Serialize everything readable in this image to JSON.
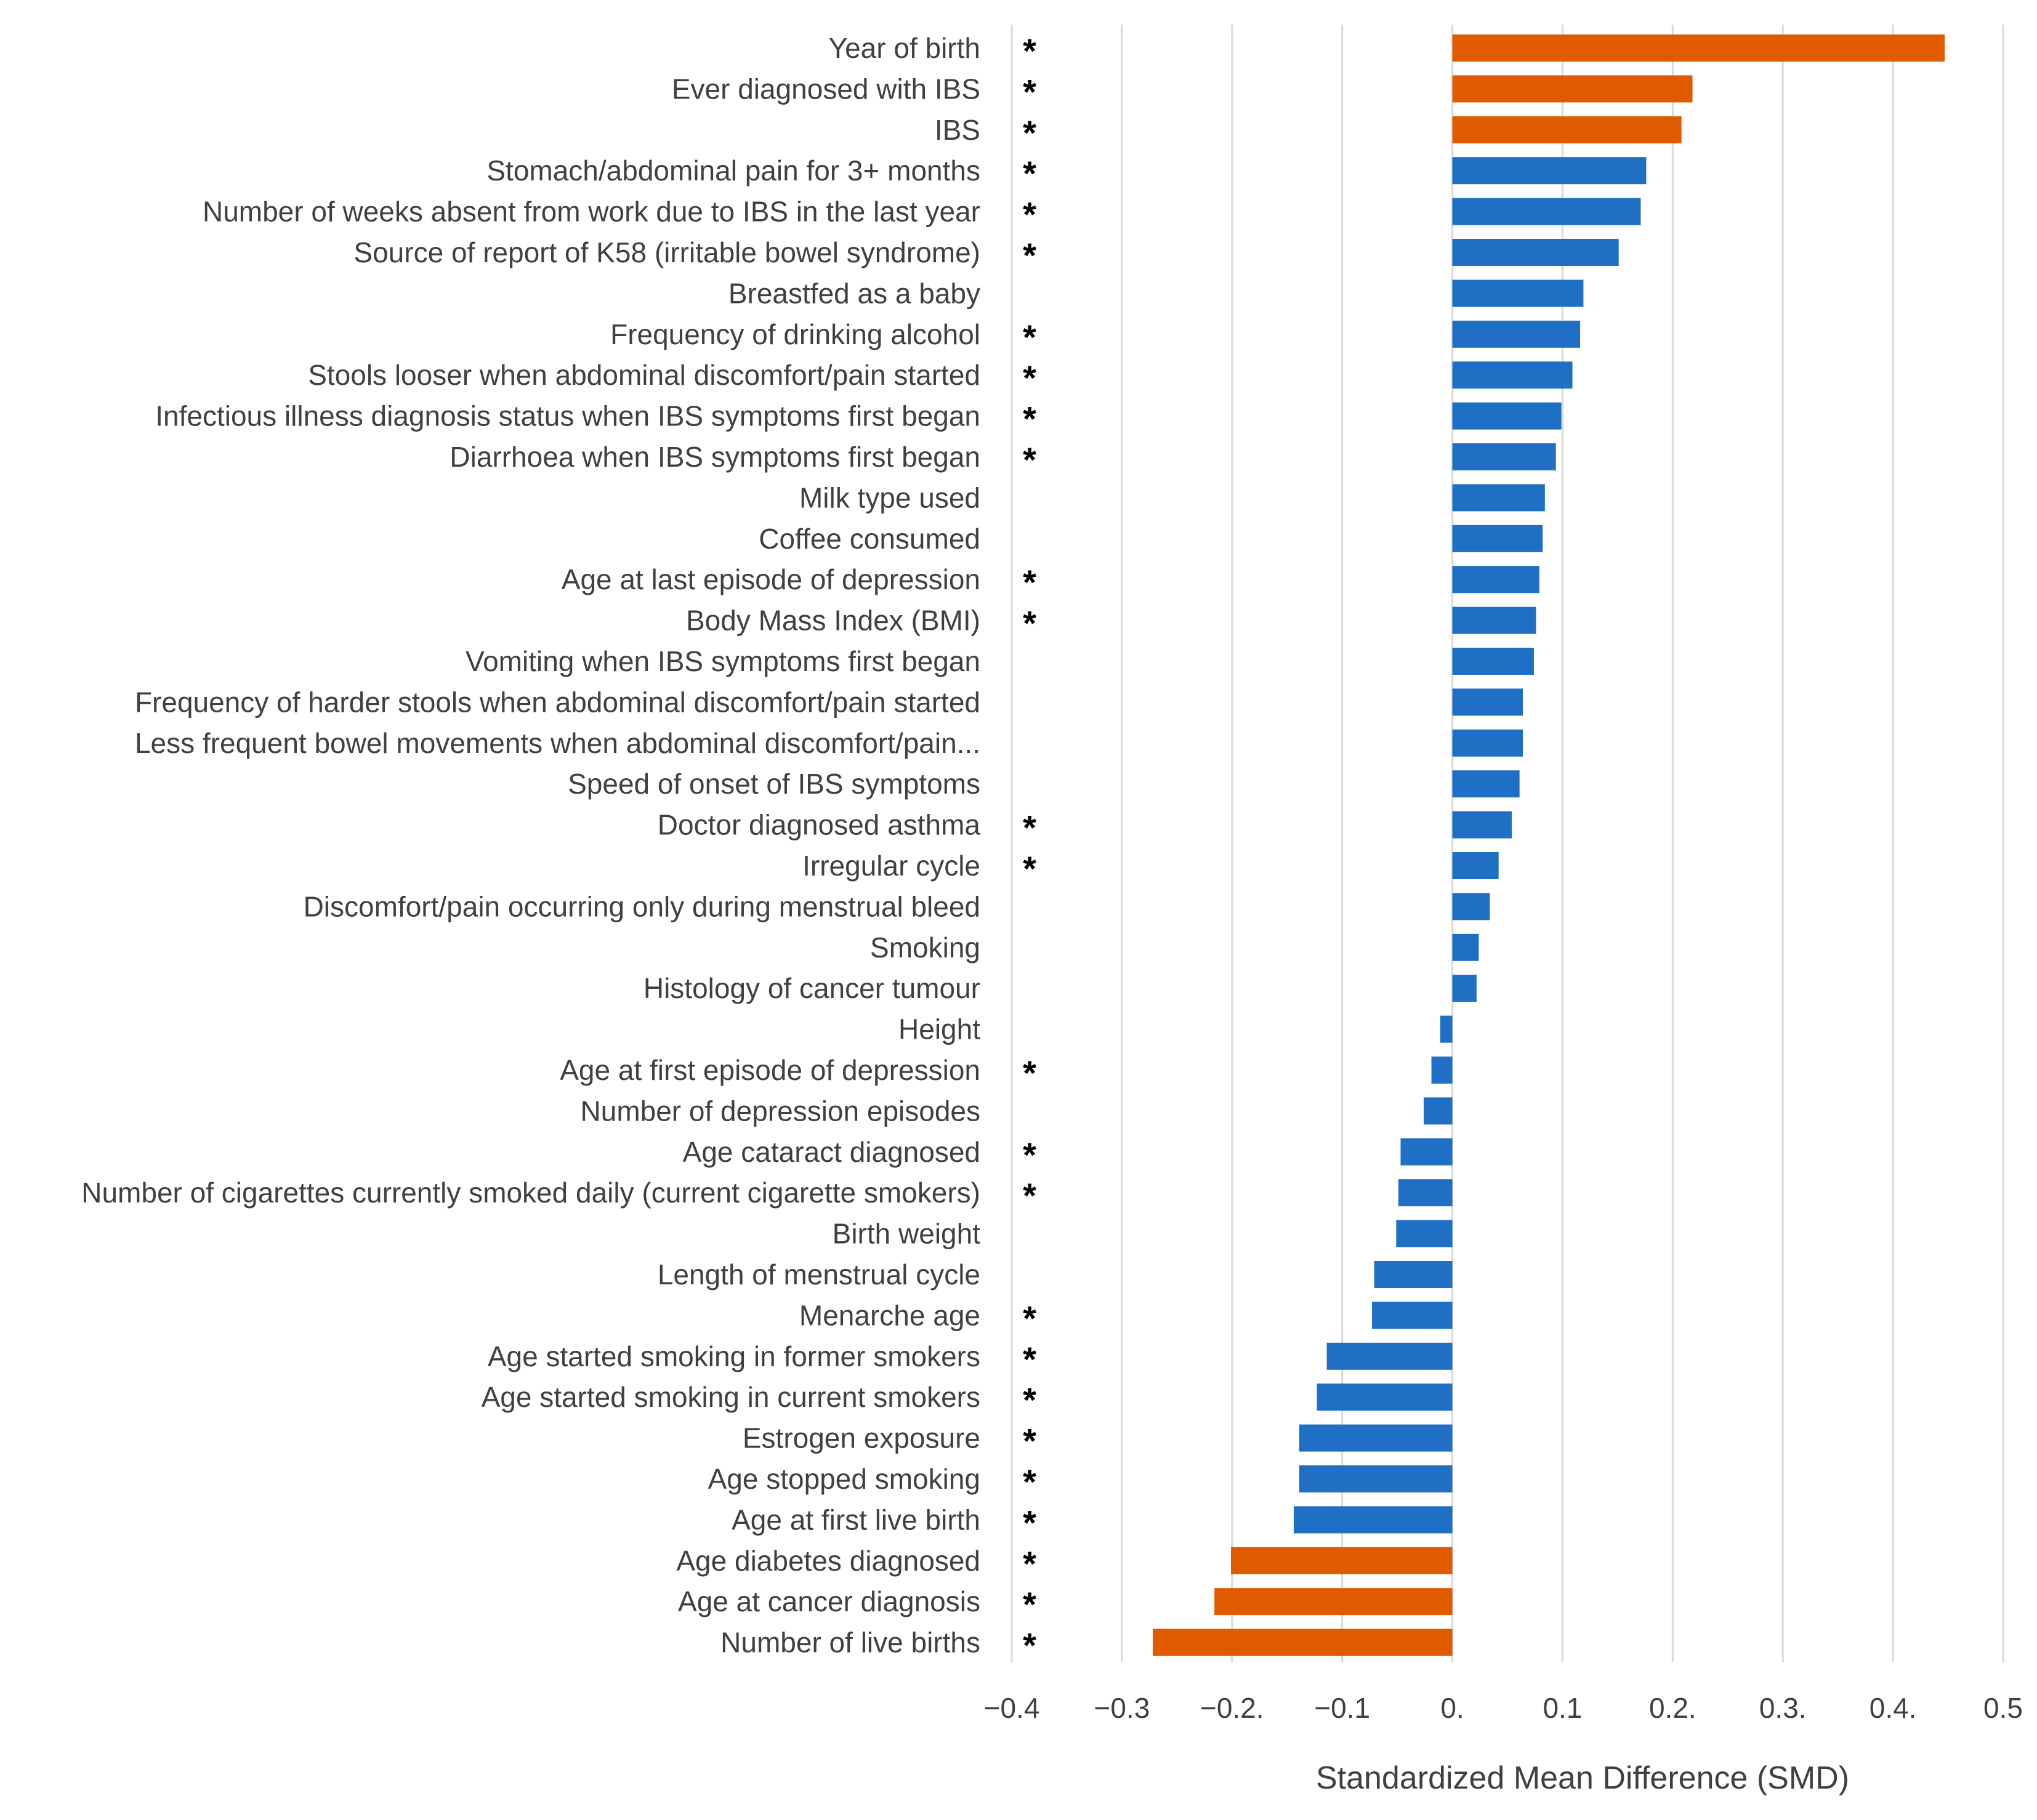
{
  "chart_data": {
    "type": "bar",
    "orientation": "horizontal",
    "title": "",
    "xlabel": "Standardized Mean Difference (SMD)",
    "ylabel": "",
    "xlim": [
      -0.4,
      0.5
    ],
    "ticks": [
      -0.4,
      -0.3,
      -0.2,
      -0.1,
      0.0,
      0.1,
      0.2,
      0.3,
      0.4,
      0.5
    ],
    "tick_labels": [
      "−0.4",
      "−0.3",
      "−0.2.",
      "−0.1",
      "0.",
      "0.1",
      "0.2.",
      "0.3.",
      "0.4.",
      "0.5"
    ],
    "grid": true,
    "colors": {
      "highlight": "#E05A00",
      "normal": "#1F6FC5"
    },
    "significance_marker": "*",
    "bars": [
      {
        "label": "Year of birth",
        "value": 0.447,
        "significant": true,
        "highlight": true
      },
      {
        "label": "Ever diagnosed with IBS",
        "value": 0.218,
        "significant": true,
        "highlight": true
      },
      {
        "label": "IBS",
        "value": 0.208,
        "significant": true,
        "highlight": true
      },
      {
        "label": "Stomach/abdominal pain for 3+ months",
        "value": 0.176,
        "significant": true,
        "highlight": false
      },
      {
        "label": "Number of weeks absent from work due to IBS  in the last year",
        "value": 0.171,
        "significant": true,
        "highlight": false
      },
      {
        "label": "Source of report of K58 (irritable bowel syndrome)",
        "value": 0.151,
        "significant": true,
        "highlight": false
      },
      {
        "label": "Breastfed as a baby",
        "value": 0.119,
        "significant": false,
        "highlight": false
      },
      {
        "label": "Frequency of drinking alcohol",
        "value": 0.116,
        "significant": true,
        "highlight": false
      },
      {
        "label": "Stools looser when abdominal discomfort/pain started",
        "value": 0.109,
        "significant": true,
        "highlight": false
      },
      {
        "label": "Infectious illness diagnosis status when IBS symptoms first began",
        "value": 0.099,
        "significant": true,
        "highlight": false
      },
      {
        "label": "Diarrhoea when IBS symptoms first began",
        "value": 0.094,
        "significant": true,
        "highlight": false
      },
      {
        "label": "Milk type used",
        "value": 0.084,
        "significant": false,
        "highlight": false
      },
      {
        "label": "Coffee consumed",
        "value": 0.082,
        "significant": false,
        "highlight": false
      },
      {
        "label": "Age at last episode of depression",
        "value": 0.079,
        "significant": true,
        "highlight": false
      },
      {
        "label": "Body Mass Index (BMI)",
        "value": 0.076,
        "significant": true,
        "highlight": false
      },
      {
        "label": "Vomiting when IBS symptoms first began",
        "value": 0.074,
        "significant": false,
        "highlight": false
      },
      {
        "label": "Frequency of harder stools when abdominal discomfort/pain started",
        "value": 0.064,
        "significant": false,
        "highlight": false
      },
      {
        "label": "Less frequent bowel movements when abdominal discomfort/pain...",
        "value": 0.064,
        "significant": false,
        "highlight": false
      },
      {
        "label": "Speed of onset of IBS symptoms",
        "value": 0.061,
        "significant": false,
        "highlight": false
      },
      {
        "label": "Doctor diagnosed asthma",
        "value": 0.054,
        "significant": true,
        "highlight": false
      },
      {
        "label": "Irregular cycle",
        "value": 0.042,
        "significant": true,
        "highlight": false
      },
      {
        "label": "Discomfort/pain occurring only during menstrual bleed",
        "value": 0.034,
        "significant": false,
        "highlight": false
      },
      {
        "label": "Smoking",
        "value": 0.024,
        "significant": false,
        "highlight": false
      },
      {
        "label": "Histology of cancer tumour",
        "value": 0.022,
        "significant": false,
        "highlight": false
      },
      {
        "label": "Height",
        "value": -0.011,
        "significant": false,
        "highlight": false
      },
      {
        "label": "Age at first episode of depression",
        "value": -0.019,
        "significant": true,
        "highlight": false
      },
      {
        "label": "Number of depression episodes",
        "value": -0.026,
        "significant": false,
        "highlight": false
      },
      {
        "label": "Age cataract diagnosed",
        "value": -0.047,
        "significant": true,
        "highlight": false
      },
      {
        "label": "Number of cigarettes currently smoked daily (current cigarette smokers)",
        "value": -0.049,
        "significant": true,
        "highlight": false
      },
      {
        "label": "Birth weight",
        "value": -0.051,
        "significant": false,
        "highlight": false
      },
      {
        "label": "Length of menstrual cycle",
        "value": -0.071,
        "significant": false,
        "highlight": false
      },
      {
        "label": "Menarche age",
        "value": -0.073,
        "significant": true,
        "highlight": false
      },
      {
        "label": "Age started smoking in former smokers",
        "value": -0.114,
        "significant": true,
        "highlight": false
      },
      {
        "label": "Age started smoking in current smokers",
        "value": -0.123,
        "significant": true,
        "highlight": false
      },
      {
        "label": "Estrogen exposure",
        "value": -0.139,
        "significant": true,
        "highlight": false
      },
      {
        "label": "Age stopped smoking",
        "value": -0.139,
        "significant": true,
        "highlight": false
      },
      {
        "label": "Age at first live birth",
        "value": -0.144,
        "significant": true,
        "highlight": false
      },
      {
        "label": "Age diabetes diagnosed",
        "value": -0.201,
        "significant": true,
        "highlight": true
      },
      {
        "label": "Age at cancer diagnosis",
        "value": -0.216,
        "significant": true,
        "highlight": true
      },
      {
        "label": "Number of live births",
        "value": -0.272,
        "significant": true,
        "highlight": true
      }
    ]
  }
}
